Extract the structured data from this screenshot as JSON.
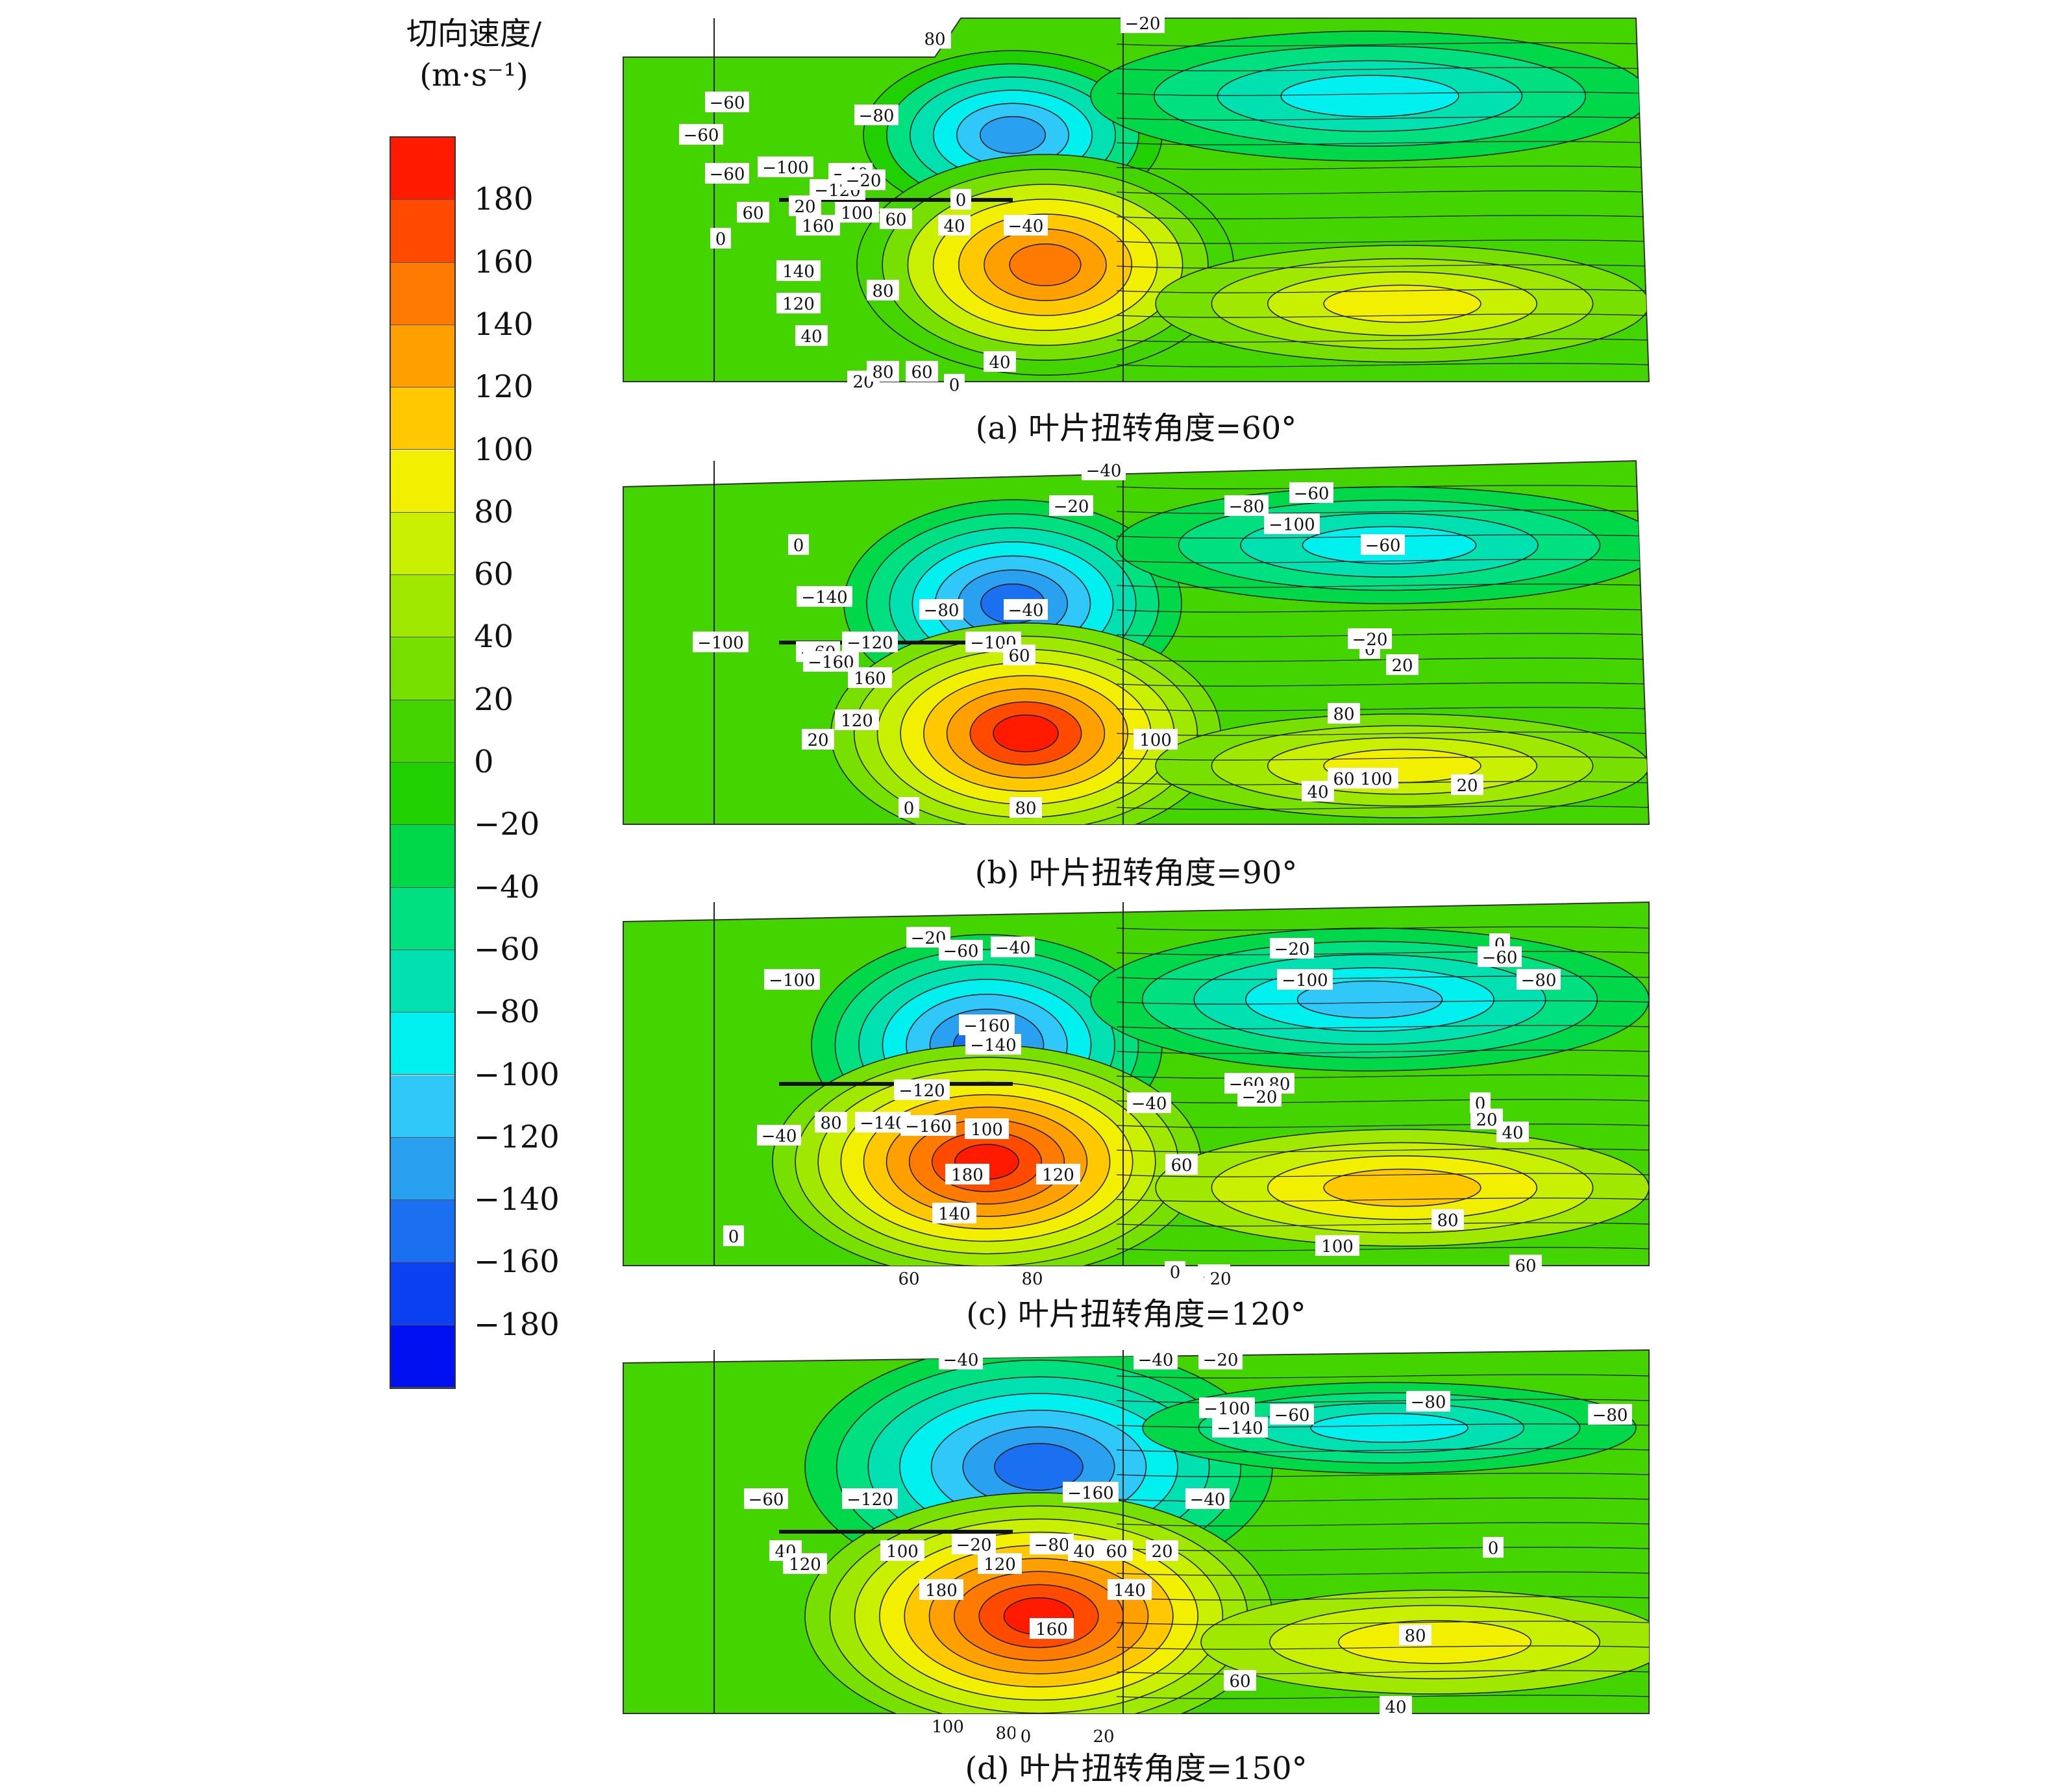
{
  "chart_data": {
    "type": "heatmap",
    "legend": {
      "title_line1": "切向速度/",
      "title_line2": "(m·s⁻¹)",
      "levels": [
        180,
        160,
        140,
        120,
        100,
        80,
        60,
        40,
        20,
        0,
        -20,
        -40,
        -60,
        -80,
        -100,
        -120,
        -140,
        -160,
        -180
      ],
      "colors": [
        "#ff1a00",
        "#ff4a00",
        "#ff7a00",
        "#ffa000",
        "#ffc800",
        "#f2f000",
        "#c8f000",
        "#a0e800",
        "#78e000",
        "#44d400",
        "#20d000",
        "#00d84a",
        "#00e080",
        "#00e0b0",
        "#00f0f0",
        "#30c8f8",
        "#2aa0f0",
        "#1a70f0",
        "#0a40f0",
        "#0010f0"
      ]
    },
    "panels": [
      {
        "caption": "(a) 叶片扭转角度=60°",
        "contour_labels": [
          "80",
          "−20",
          "−40",
          "−60",
          "−60",
          "−60",
          "−80",
          "−100",
          "−120",
          "−40",
          "−20",
          "60",
          "160",
          "100",
          "60",
          "0",
          "20",
          "0",
          "40",
          "140",
          "80",
          "120",
          "40",
          "40",
          "20",
          "80",
          "60",
          "0"
        ]
      },
      {
        "caption": "(b) 叶片扭转角度=90°",
        "contour_labels": [
          "−20",
          "−40",
          "0",
          "−80",
          "−60",
          "−100",
          "−60",
          "−140",
          "−80",
          "−40",
          "−100",
          "−60",
          "−120",
          "−100",
          "60",
          "−160",
          "160",
          "0",
          "−20",
          "20",
          "120",
          "80",
          "20",
          "100",
          "60",
          "100",
          "40",
          "0",
          "80",
          "20"
        ]
      },
      {
        "caption": "(c) 叶片扭转角度=120°",
        "contour_labels": [
          "−20",
          "−60",
          "−40",
          "−20",
          "0",
          "−60",
          "−100",
          "−80",
          "−100",
          "−160",
          "−140",
          "−80",
          "−60",
          "−20",
          "−40",
          "−120",
          "80",
          "−140",
          "−160",
          "100",
          "0",
          "−40",
          "180",
          "120",
          "60",
          "20",
          "40",
          "140",
          "80",
          "0",
          "100",
          "60",
          "60",
          "80",
          "0",
          "40",
          "20"
        ]
      },
      {
        "caption": "(d) 叶片扭转角度=150°",
        "contour_labels": [
          "−40",
          "−40",
          "−20",
          "−100",
          "−80",
          "−60",
          "−140",
          "−80",
          "−160",
          "−40",
          "−60",
          "−120",
          "−20",
          "−80",
          "0",
          "40",
          "120",
          "100",
          "120",
          "40",
          "60",
          "20",
          "180",
          "140",
          "160",
          "80",
          "60",
          "40",
          "100",
          "80",
          "0",
          "20"
        ]
      }
    ]
  }
}
